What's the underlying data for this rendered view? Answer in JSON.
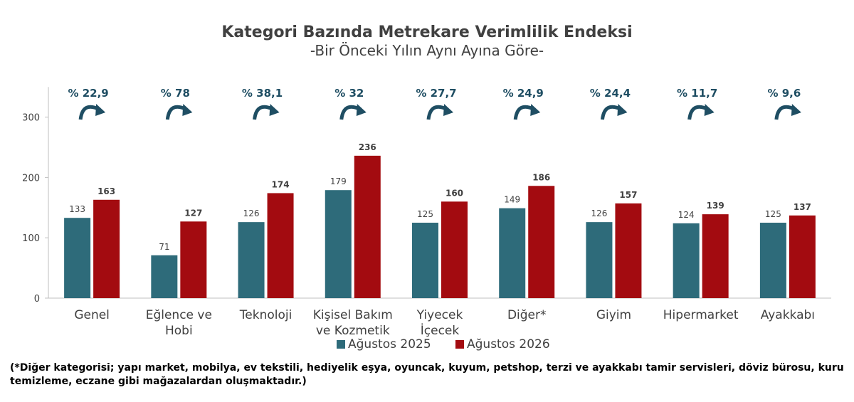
{
  "chart_data": {
    "type": "bar",
    "title": "Kategori Bazında Metrekare Verimlilik Endeksi",
    "subtitle": "-Bir Önceki Yılın Aynı Ayına Göre-",
    "categories": [
      [
        "Genel"
      ],
      [
        "Eğlence ve",
        "Hobi"
      ],
      [
        "Teknoloji"
      ],
      [
        "Kişisel Bakım",
        "ve Kozmetik"
      ],
      [
        "Yiyecek",
        "İçecek"
      ],
      [
        "Diğer*"
      ],
      [
        "Giyim"
      ],
      [
        "Hipermarket"
      ],
      [
        "Ayakkabı"
      ]
    ],
    "series": [
      {
        "name": "Ağustos 2025",
        "color": "#2e6b7a",
        "values": [
          133,
          71,
          126,
          179,
          125,
          149,
          126,
          124,
          125
        ]
      },
      {
        "name": "Ağustos 2026",
        "color": "#a30b10",
        "values": [
          163,
          127,
          174,
          236,
          160,
          186,
          157,
          139,
          137
        ]
      }
    ],
    "changes": [
      "% 22,9",
      "% 78",
      "% 38,1",
      "% 32",
      "% 27,7",
      "% 24,9",
      "% 24,4",
      "% 11,7",
      "% 9,6"
    ],
    "arrow_color": "#1f4e63",
    "yticks": [
      0,
      100,
      200,
      300
    ],
    "ylim": [
      0,
      350
    ],
    "legend_position": "bottom",
    "grid": false
  },
  "footnote": "(*Diğer kategorisi; yapı market, mobilya, ev tekstili, hediyelik eşya, oyuncak, kuyum, petshop, terzi ve ayakkabı tamir servisleri, döviz bürosu, kuru temizleme, eczane gibi mağazalardan oluşmaktadır.)"
}
